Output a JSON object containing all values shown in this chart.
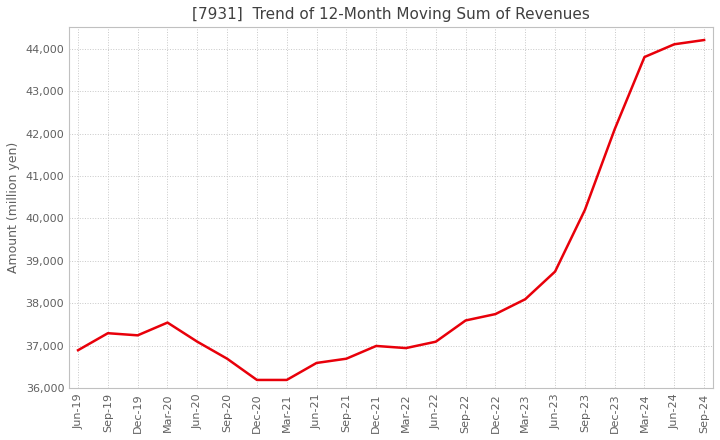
{
  "title": "[7931]  Trend of 12-Month Moving Sum of Revenues",
  "ylabel": "Amount (million yen)",
  "ylim": [
    36000,
    44500
  ],
  "yticks": [
    36000,
    37000,
    38000,
    39000,
    40000,
    41000,
    42000,
    43000,
    44000
  ],
  "x_labels": [
    "Jun-19",
    "Sep-19",
    "Dec-19",
    "Mar-20",
    "Jun-20",
    "Sep-20",
    "Dec-20",
    "Mar-21",
    "Jun-21",
    "Sep-21",
    "Dec-21",
    "Mar-22",
    "Jun-22",
    "Sep-22",
    "Dec-22",
    "Mar-23",
    "Jun-23",
    "Sep-23",
    "Dec-23",
    "Mar-24",
    "Jun-24",
    "Sep-24"
  ],
  "values": [
    36900,
    37300,
    37250,
    37550,
    37100,
    36700,
    36200,
    36200,
    36600,
    36700,
    37000,
    36950,
    37100,
    37600,
    37750,
    38100,
    38750,
    40200,
    42100,
    43800,
    44100,
    44200
  ],
  "line_color": "#e8000a",
  "bg_color": "#ffffff",
  "plot_bg_color": "#ffffff",
  "title_color": "#404040",
  "grid_color": "#c8c8c8",
  "tick_color": "#606060",
  "title_fontsize": 11,
  "ylabel_fontsize": 9,
  "tick_fontsize": 8
}
